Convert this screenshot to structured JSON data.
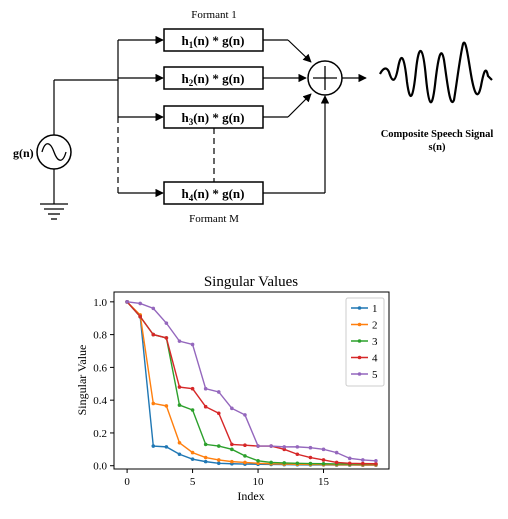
{
  "diagram": {
    "source_label": "g(n)",
    "formant_top_label": "Formant 1",
    "formant_bottom_label": "Formant M",
    "filters": [
      {
        "base": "h",
        "sub": "1",
        "rest": "(n) * g(n)"
      },
      {
        "base": "h",
        "sub": "2",
        "rest": "(n) * g(n)"
      },
      {
        "base": "h",
        "sub": "3",
        "rest": "(n) * g(n)"
      },
      {
        "base": "h",
        "sub": "4",
        "rest": "(n) * g(n)"
      }
    ],
    "output_title": "Composite Speech Signal",
    "output_signal": "s(n)"
  },
  "chart_data": {
    "type": "line",
    "title": "Singular Values",
    "xlabel": "Index",
    "ylabel": "Singular Value",
    "xlim": [
      -1,
      20
    ],
    "ylim": [
      -0.02,
      1.06
    ],
    "xticks": [
      0,
      5,
      10,
      15
    ],
    "yticks": [
      0.0,
      0.2,
      0.4,
      0.6,
      0.8,
      1.0
    ],
    "grid": false,
    "legend_position": "top-right",
    "x": [
      0,
      1,
      2,
      3,
      4,
      5,
      6,
      7,
      8,
      9,
      10,
      11,
      12,
      13,
      14,
      15,
      16,
      17,
      18,
      19
    ],
    "series": [
      {
        "name": "1",
        "color": "#1f77b4",
        "values": [
          1.0,
          0.91,
          0.12,
          0.115,
          0.07,
          0.04,
          0.025,
          0.015,
          0.012,
          0.01,
          0.009,
          0.008,
          0.007,
          0.006,
          0.005,
          0.005,
          0.004,
          0.004,
          0.003,
          0.003
        ]
      },
      {
        "name": "2",
        "color": "#ff7f0e",
        "values": [
          1.0,
          0.92,
          0.38,
          0.365,
          0.14,
          0.08,
          0.05,
          0.035,
          0.025,
          0.02,
          0.015,
          0.012,
          0.01,
          0.009,
          0.008,
          0.007,
          0.006,
          0.006,
          0.005,
          0.005
        ]
      },
      {
        "name": "3",
        "color": "#2ca02c",
        "values": [
          1.0,
          0.91,
          0.8,
          0.78,
          0.37,
          0.34,
          0.13,
          0.12,
          0.1,
          0.06,
          0.03,
          0.02,
          0.017,
          0.015,
          0.013,
          0.012,
          0.011,
          0.01,
          0.01,
          0.01
        ]
      },
      {
        "name": "4",
        "color": "#d62728",
        "values": [
          1.0,
          0.91,
          0.8,
          0.78,
          0.48,
          0.47,
          0.36,
          0.32,
          0.13,
          0.125,
          0.12,
          0.12,
          0.1,
          0.07,
          0.05,
          0.035,
          0.02,
          0.015,
          0.013,
          0.012
        ]
      },
      {
        "name": "5",
        "color": "#9467bd",
        "values": [
          1.0,
          0.99,
          0.96,
          0.87,
          0.76,
          0.74,
          0.47,
          0.45,
          0.35,
          0.31,
          0.12,
          0.12,
          0.115,
          0.115,
          0.11,
          0.1,
          0.08,
          0.045,
          0.035,
          0.03
        ]
      }
    ]
  }
}
